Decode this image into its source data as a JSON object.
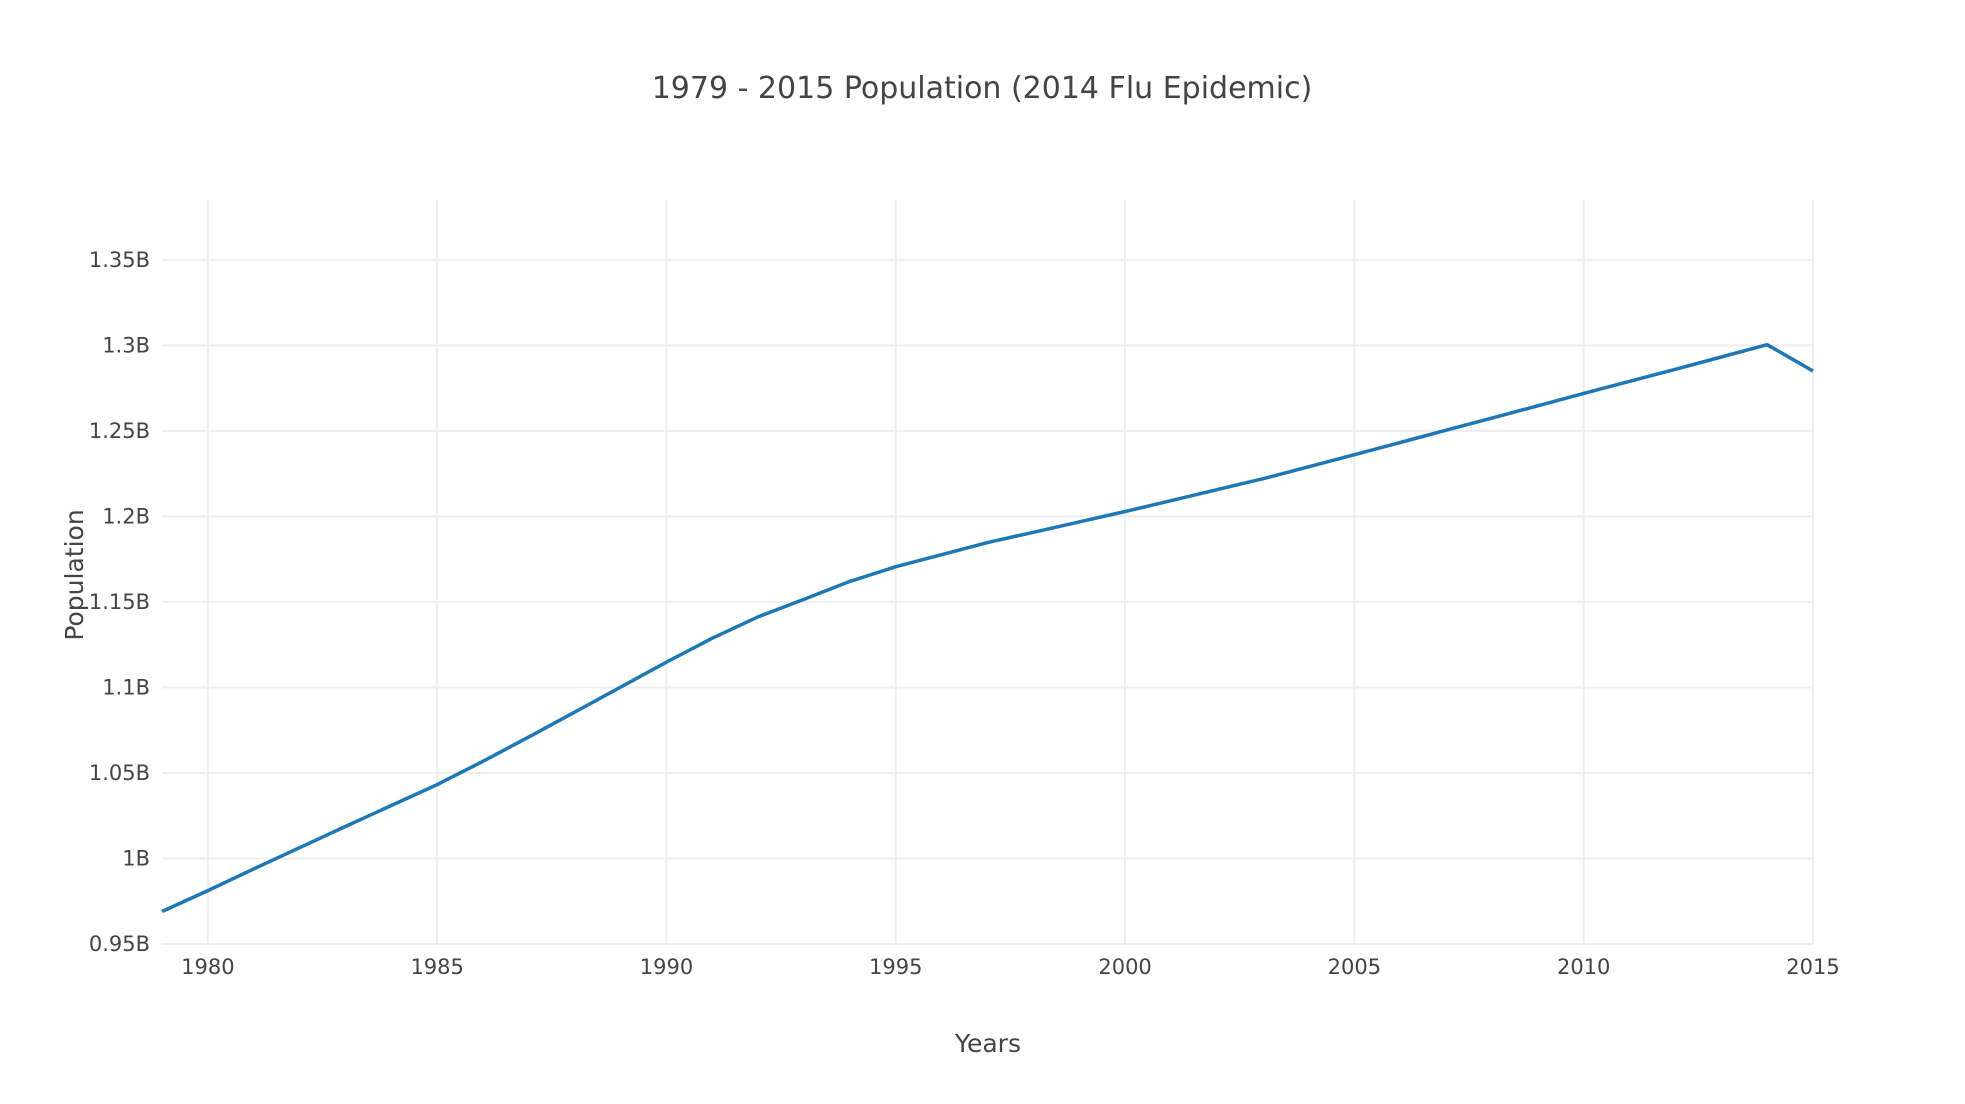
{
  "chart_data": {
    "type": "line",
    "title": "1979 - 2015 Population (2014 Flu Epidemic)",
    "xlabel": "Years",
    "ylabel": "Population",
    "xlim": [
      1979,
      2015
    ],
    "ylim": [
      950000000,
      1385000000
    ],
    "grid": true,
    "x_ticks": [
      {
        "value": 1980,
        "label": "1980"
      },
      {
        "value": 1985,
        "label": "1985"
      },
      {
        "value": 1990,
        "label": "1990"
      },
      {
        "value": 1995,
        "label": "1995"
      },
      {
        "value": 2000,
        "label": "2000"
      },
      {
        "value": 2005,
        "label": "2005"
      },
      {
        "value": 2010,
        "label": "2010"
      },
      {
        "value": 2015,
        "label": "2015"
      }
    ],
    "y_ticks": [
      {
        "value": 950000000,
        "label": "0.95B"
      },
      {
        "value": 1000000000,
        "label": "1B"
      },
      {
        "value": 1050000000,
        "label": "1.05B"
      },
      {
        "value": 1100000000,
        "label": "1.1B"
      },
      {
        "value": 1150000000,
        "label": "1.15B"
      },
      {
        "value": 1200000000,
        "label": "1.2B"
      },
      {
        "value": 1250000000,
        "label": "1.25B"
      },
      {
        "value": 1300000000,
        "label": "1.3B"
      },
      {
        "value": 1350000000,
        "label": "1.35B"
      }
    ],
    "series": [
      {
        "color": "#1f77b4",
        "x": [
          1979,
          1980,
          1981,
          1982,
          1983,
          1984,
          1985,
          1986,
          1987,
          1988,
          1989,
          1990,
          1991,
          1992,
          1993,
          1994,
          1995,
          1996,
          1997,
          1998,
          1999,
          2000,
          2001,
          2002,
          2003,
          2004,
          2005,
          2006,
          2007,
          2008,
          2009,
          2010,
          2011,
          2012,
          2013,
          2014,
          2015
        ],
        "y": [
          969000000,
          981200000,
          993900000,
          1006300000,
          1018700000,
          1031000000,
          1043200000,
          1056800000,
          1071100000,
          1085600000,
          1100200000,
          1114800000,
          1128800000,
          1141300000,
          1151600000,
          1162000000,
          1170600000,
          1177600000,
          1184700000,
          1190700000,
          1196800000,
          1202900000,
          1209200000,
          1215600000,
          1222000000,
          1229000000,
          1236100000,
          1243200000,
          1250400000,
          1257500000,
          1264700000,
          1271900000,
          1279000000,
          1286000000,
          1293200000,
          1300400000,
          1285000000
        ]
      }
    ]
  }
}
